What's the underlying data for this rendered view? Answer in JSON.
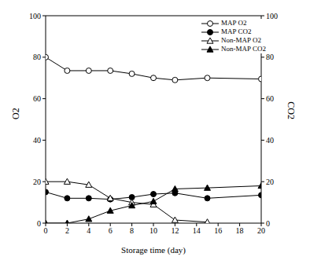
{
  "chart_data": {
    "type": "line",
    "xlabel": "Storage time (day)",
    "ylabel": "O2",
    "y2label": "CO2",
    "x": [
      0,
      2,
      4,
      6,
      8,
      10,
      12,
      15,
      20
    ],
    "xlim": [
      0,
      20
    ],
    "xticks": [
      0,
      2,
      4,
      6,
      8,
      10,
      12,
      14,
      16,
      18,
      20
    ],
    "ylim": [
      0,
      100
    ],
    "yticks": [
      0,
      20,
      40,
      60,
      80,
      100
    ],
    "y2lim": [
      0,
      100
    ],
    "y2ticks": [
      0,
      20,
      40,
      60,
      80,
      100
    ],
    "legend": "upper right",
    "grid": false,
    "series": [
      {
        "name": "MAP O2",
        "color": "#000000",
        "marker": "open_circle",
        "values": [
          80,
          73.5,
          73.5,
          73.5,
          72,
          70,
          69,
          70,
          69.5
        ]
      },
      {
        "name": "MAP CO2",
        "color": "#000000",
        "marker": "filled_circle",
        "axis": "y2",
        "values": [
          15,
          12,
          12,
          11.5,
          12.5,
          14,
          14.5,
          12,
          13.5
        ]
      },
      {
        "name": "Non-MAP O2",
        "color": "#000000",
        "marker": "open_triangle",
        "values": [
          20,
          20,
          18.5,
          12,
          10,
          9,
          1.5,
          0.5,
          null
        ]
      },
      {
        "name": "Non-MAP CO2",
        "color": "#000000",
        "marker": "filled_triangle",
        "axis": "y2",
        "values": [
          0,
          0,
          2,
          6,
          8.5,
          10.5,
          16.5,
          17,
          18
        ]
      }
    ]
  }
}
